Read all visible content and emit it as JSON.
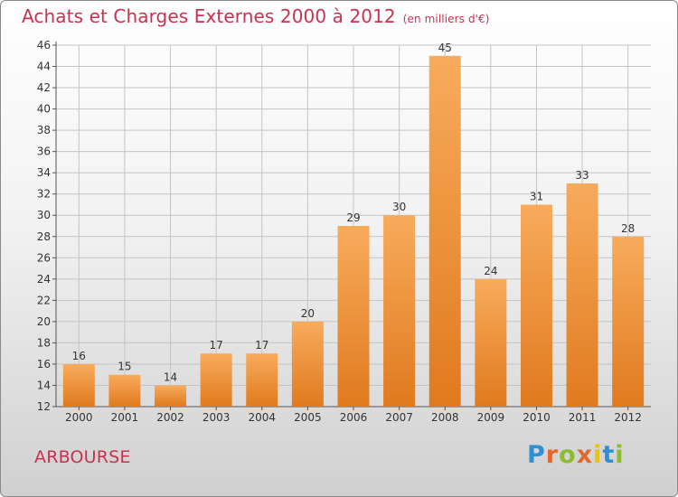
{
  "header": {
    "title": "Achats et Charges Externes 2000 à 2012",
    "subtitle": "(en milliers d'€)"
  },
  "footer": {
    "commune": "ARBOURSE",
    "logo_text": "Proxiti"
  },
  "colors": {
    "title": "#c8324f",
    "bar_light": "#f8ab5c",
    "bar_dark": "#e07a1e"
  },
  "chart_data": {
    "type": "bar",
    "title": "Achats et Charges Externes 2000 à 2012",
    "subtitle": "(en milliers d'€)",
    "categories": [
      "2000",
      "2001",
      "2002",
      "2003",
      "2004",
      "2005",
      "2006",
      "2007",
      "2008",
      "2009",
      "2010",
      "2011",
      "2012"
    ],
    "values": [
      16,
      15,
      14,
      17,
      17,
      20,
      29,
      30,
      45,
      24,
      31,
      33,
      28
    ],
    "xlabel": "",
    "ylabel": "",
    "ylim": [
      12,
      46
    ],
    "yticks": [
      12,
      14,
      16,
      18,
      20,
      22,
      24,
      26,
      28,
      30,
      32,
      34,
      36,
      38,
      40,
      42,
      44,
      46
    ],
    "grid": true,
    "data_labels": true
  }
}
